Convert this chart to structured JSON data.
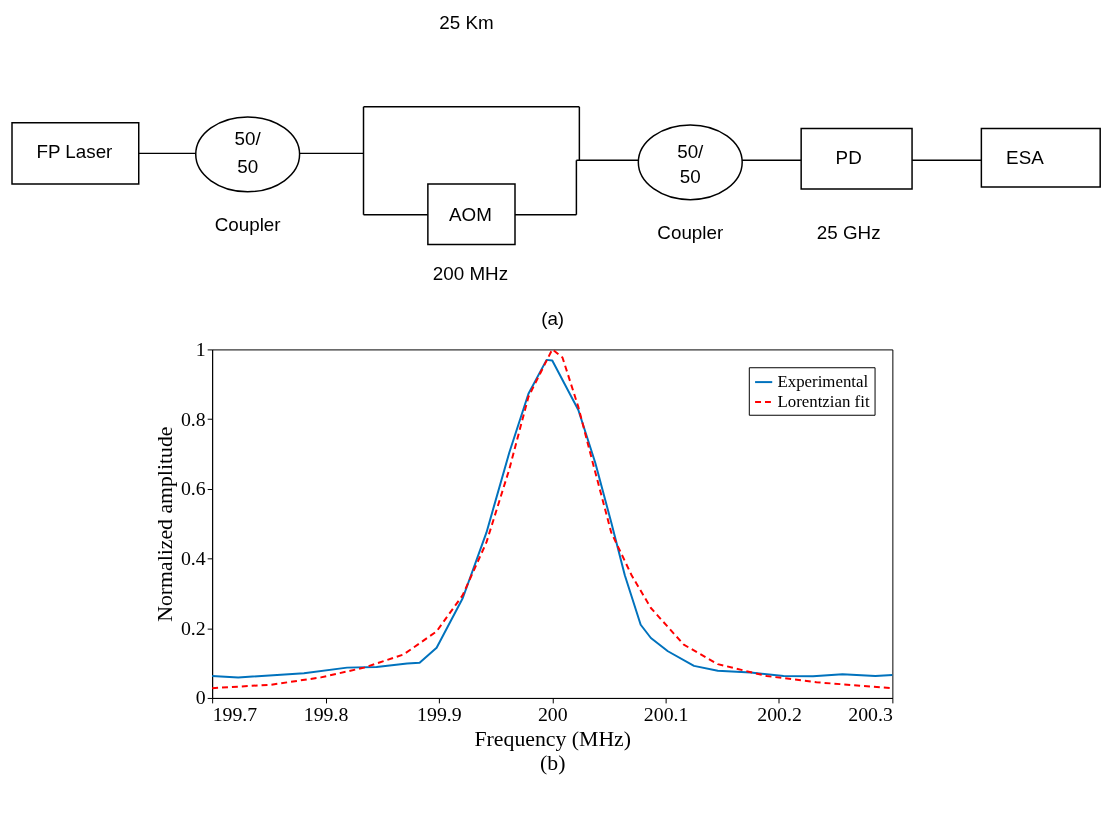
{
  "chart_data": [
    {
      "type": "other",
      "annotations": [
        "25 Km",
        "FP Laser",
        "50/",
        "50",
        "Coupler",
        "AOM",
        "200 MHz",
        "50/",
        "50",
        "Coupler",
        "PD",
        "25 GHz",
        "ESA",
        "(a)"
      ]
    },
    {
      "type": "line",
      "xlabel": "Frequency (MHz)",
      "ylabel": "Normalized amplitude",
      "annotations": [
        "(b)"
      ],
      "xlim": [
        199.7,
        200.3
      ],
      "xticks": [
        199.7,
        199.8,
        199.9,
        200,
        200.1,
        200.2,
        200.3
      ],
      "ylim": [
        0,
        1
      ],
      "yticks": [
        0,
        0.2,
        0.4,
        0.6,
        0.8,
        1
      ],
      "grid": false,
      "legend": "top right",
      "series": [
        {
          "name": "Experimental",
          "color": "#0072bd",
          "line_style": "solid",
          "x": [
            199.7,
            199.723,
            199.781,
            199.819,
            199.845,
            199.872,
            199.883,
            199.898,
            199.921,
            199.942,
            199.962,
            199.979,
            199.995,
            200.0,
            200.023,
            200.038,
            200.052,
            200.064,
            200.078,
            200.087,
            200.102,
            200.125,
            200.146,
            200.175,
            200.204,
            200.23,
            200.256,
            200.285,
            200.3
          ],
          "values": [
            0.063,
            0.059,
            0.071,
            0.087,
            0.089,
            0.099,
            0.101,
            0.144,
            0.286,
            0.475,
            0.703,
            0.873,
            0.97,
            0.968,
            0.826,
            0.674,
            0.504,
            0.352,
            0.21,
            0.172,
            0.134,
            0.092,
            0.078,
            0.073,
            0.063,
            0.062,
            0.068,
            0.063,
            0.066
          ]
        },
        {
          "name": "Lorentzian fit",
          "color": "#ff0000",
          "line_style": "dashed",
          "x": [
            199.7,
            199.752,
            199.796,
            199.834,
            199.869,
            199.898,
            199.921,
            199.942,
            199.962,
            199.979,
            200.0,
            200.009,
            200.023,
            200.035,
            200.052,
            200.07,
            200.087,
            200.116,
            200.146,
            200.189,
            200.233,
            200.3
          ],
          "values": [
            0.028,
            0.038,
            0.059,
            0.087,
            0.125,
            0.191,
            0.295,
            0.447,
            0.655,
            0.864,
            1.0,
            0.977,
            0.835,
            0.684,
            0.475,
            0.352,
            0.258,
            0.153,
            0.097,
            0.063,
            0.045,
            0.028
          ]
        }
      ]
    }
  ]
}
